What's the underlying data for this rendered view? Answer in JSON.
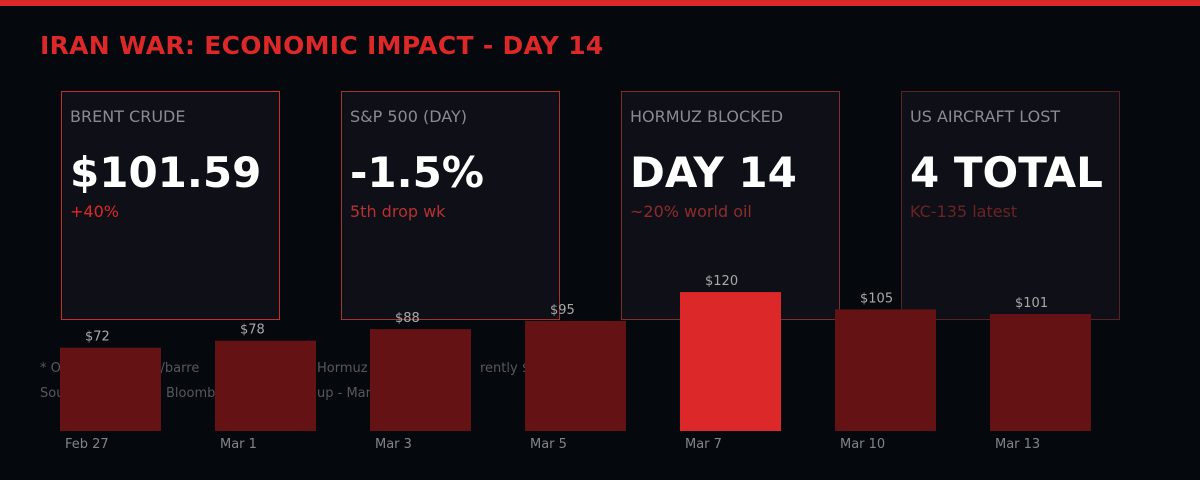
{
  "title": "IRAN WAR: ECONOMIC IMPACT - DAY 14",
  "colors": {
    "accent": "#dc2828",
    "bar": "#641214",
    "highlight_bar": "#dc2828"
  },
  "cards": [
    {
      "label": "BRENT CRUDE",
      "value": "$101.59",
      "sub": "+40%",
      "border": "#c62e2e",
      "sub_color": "#dc2828"
    },
    {
      "label": "S&P 500 (DAY)",
      "value": "-1.5%",
      "sub": "5th drop wk",
      "border": "#a63333",
      "sub_color": "#b83030"
    },
    {
      "label": "HORMUZ BLOCKED",
      "value": "DAY 14",
      "sub": "~20% world oil",
      "border": "#7f2e2e",
      "sub_color": "#8e2c2c"
    },
    {
      "label": "US AIRCRAFT LOST",
      "value": "4 TOTAL",
      "sub": "KC-135 latest",
      "border": "#5a2222",
      "sub_color": "#6a2424"
    }
  ],
  "footnote_fragments": {
    "line1": [
      "* O",
      "20/barre",
      "Hormuz",
      "rently $1"
    ],
    "line2": [
      "Sou",
      "Bloomb",
      "up - Mar"
    ]
  },
  "chart_data": {
    "type": "bar",
    "categories": [
      "Feb 27",
      "Mar 1",
      "Mar 3",
      "Mar 5",
      "Mar 7",
      "Mar 10",
      "Mar 13"
    ],
    "values": [
      72,
      78,
      88,
      95,
      120,
      105,
      101
    ],
    "value_labels": [
      "$72",
      "$78",
      "$88",
      "$95",
      "$120",
      "$105",
      "$101"
    ],
    "highlight_index": 4,
    "ylabel": "",
    "xlabel": ""
  }
}
